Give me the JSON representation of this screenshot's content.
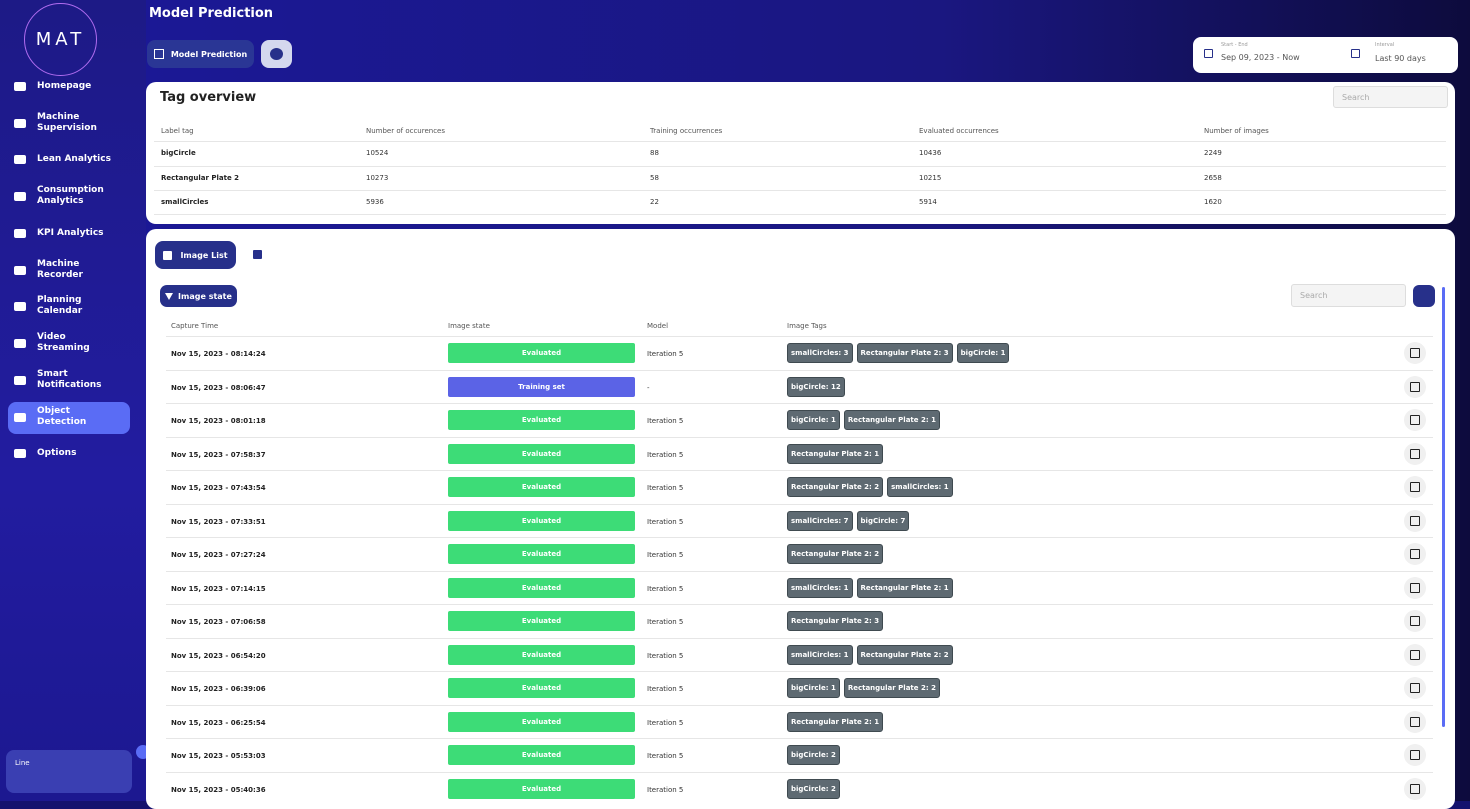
{
  "logo": "MAT",
  "header": {
    "title": "Model Prediction",
    "tab": "Model Prediction"
  },
  "date_range": {
    "label": "Start - End",
    "value": "Sep 09, 2023 - Now"
  },
  "interval": {
    "label": "Interval",
    "value": "Last 90 days"
  },
  "nav": [
    "Homepage",
    "Machine Supervision",
    "Lean Analytics",
    "Consumption Analytics",
    "KPI Analytics",
    "Machine Recorder",
    "Planning Calendar",
    "Video Streaming",
    "Smart Notifications",
    "Object Detection",
    "Options"
  ],
  "nav_active": 9,
  "line_box": "Line",
  "tag_overview": {
    "title": "Tag overview",
    "search": "Search",
    "columns": [
      "Label tag",
      "Number of occurences",
      "Training occurrences",
      "Evaluated occurrences",
      "Number of images"
    ],
    "rows": [
      [
        "bigCircle",
        "10524",
        "88",
        "10436",
        "2249"
      ],
      [
        "Rectangular Plate 2",
        "10273",
        "58",
        "10215",
        "2658"
      ],
      [
        "smallCircles",
        "5936",
        "22",
        "5914",
        "1620"
      ]
    ]
  },
  "image_list": {
    "tab": "Image List",
    "filter": "Image state",
    "search": "Search",
    "columns": [
      "Capture Time",
      "Image state",
      "Model",
      "Image Tags"
    ],
    "rows": [
      {
        "time": "Nov 15, 2023 - 08:14:24",
        "state": "Evaluated",
        "model": "Iteration 5",
        "tags": [
          "smallCircles: 3",
          "Rectangular Plate 2: 3",
          "bigCircle: 1"
        ]
      },
      {
        "time": "Nov 15, 2023 - 08:06:47",
        "state": "Training set",
        "model": "-",
        "tags": [
          "bigCircle: 12"
        ]
      },
      {
        "time": "Nov 15, 2023 - 08:01:18",
        "state": "Evaluated",
        "model": "Iteration 5",
        "tags": [
          "bigCircle: 1",
          "Rectangular Plate 2: 1"
        ]
      },
      {
        "time": "Nov 15, 2023 - 07:58:37",
        "state": "Evaluated",
        "model": "Iteration 5",
        "tags": [
          "Rectangular Plate 2: 1"
        ]
      },
      {
        "time": "Nov 15, 2023 - 07:43:54",
        "state": "Evaluated",
        "model": "Iteration 5",
        "tags": [
          "Rectangular Plate 2: 2",
          "smallCircles: 1"
        ]
      },
      {
        "time": "Nov 15, 2023 - 07:33:51",
        "state": "Evaluated",
        "model": "Iteration 5",
        "tags": [
          "smallCircles: 7",
          "bigCircle: 7"
        ]
      },
      {
        "time": "Nov 15, 2023 - 07:27:24",
        "state": "Evaluated",
        "model": "Iteration 5",
        "tags": [
          "Rectangular Plate 2: 2"
        ]
      },
      {
        "time": "Nov 15, 2023 - 07:14:15",
        "state": "Evaluated",
        "model": "Iteration 5",
        "tags": [
          "smallCircles: 1",
          "Rectangular Plate 2: 1"
        ]
      },
      {
        "time": "Nov 15, 2023 - 07:06:58",
        "state": "Evaluated",
        "model": "Iteration 5",
        "tags": [
          "Rectangular Plate 2: 3"
        ]
      },
      {
        "time": "Nov 15, 2023 - 06:54:20",
        "state": "Evaluated",
        "model": "Iteration 5",
        "tags": [
          "smallCircles: 1",
          "Rectangular Plate 2: 2"
        ]
      },
      {
        "time": "Nov 15, 2023 - 06:39:06",
        "state": "Evaluated",
        "model": "Iteration 5",
        "tags": [
          "bigCircle: 1",
          "Rectangular Plate 2: 2"
        ]
      },
      {
        "time": "Nov 15, 2023 - 06:25:54",
        "state": "Evaluated",
        "model": "Iteration 5",
        "tags": [
          "Rectangular Plate 2: 1"
        ]
      },
      {
        "time": "Nov 15, 2023 - 05:53:03",
        "state": "Evaluated",
        "model": "Iteration 5",
        "tags": [
          "bigCircle: 2"
        ]
      },
      {
        "time": "Nov 15, 2023 - 05:40:36",
        "state": "Evaluated",
        "model": "Iteration 5",
        "tags": [
          "bigCircle: 2"
        ]
      }
    ]
  }
}
